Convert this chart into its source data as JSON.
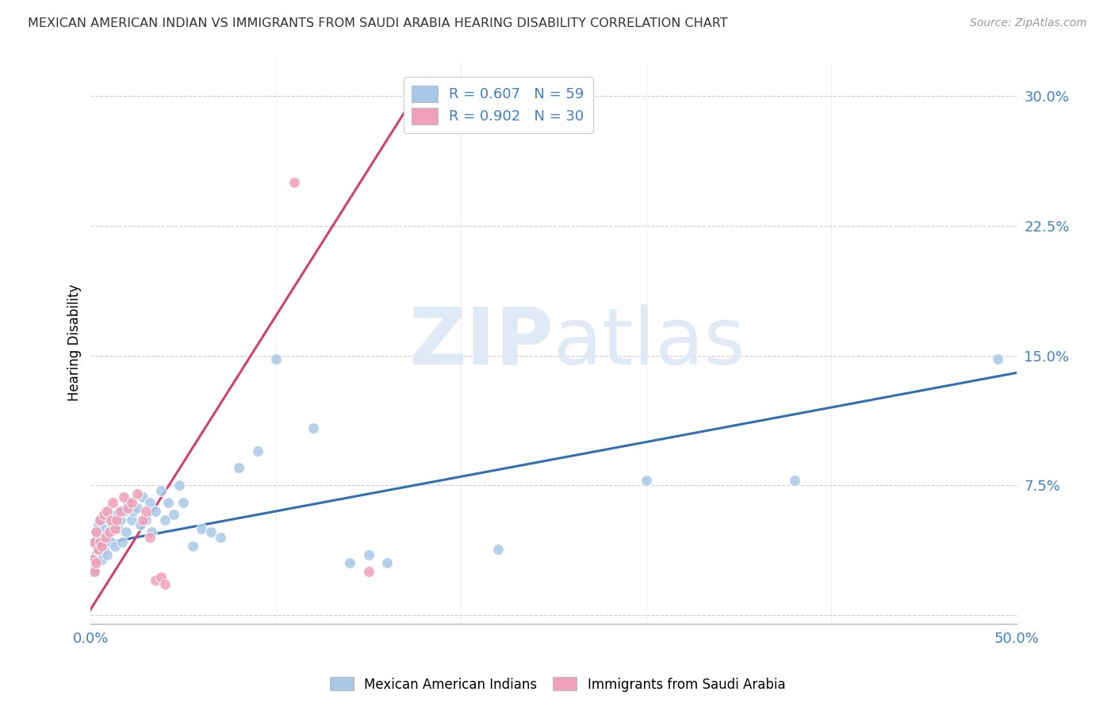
{
  "title": "MEXICAN AMERICAN INDIAN VS IMMIGRANTS FROM SAUDI ARABIA HEARING DISABILITY CORRELATION CHART",
  "source": "Source: ZipAtlas.com",
  "ylabel": "Hearing Disability",
  "xlim": [
    0.0,
    0.5
  ],
  "ylim": [
    -0.005,
    0.32
  ],
  "xticks": [
    0.0,
    0.1,
    0.2,
    0.3,
    0.4,
    0.5
  ],
  "yticks": [
    0.0,
    0.075,
    0.15,
    0.225,
    0.3
  ],
  "ytick_labels": [
    "",
    "7.5%",
    "15.0%",
    "22.5%",
    "30.0%"
  ],
  "xtick_labels": [
    "0.0%",
    "",
    "",
    "",
    "",
    "50.0%"
  ],
  "color_blue": "#a8c8e8",
  "color_pink": "#f0a0b8",
  "color_blue_fill": "#a8c8e8",
  "color_pink_fill": "#f0a0b8",
  "color_blue_line": "#3070b0",
  "color_pink_line": "#d04070",
  "color_blue_text": "#4080c0",
  "watermark_color": "#dce8f5",
  "blue_scatter_x": [
    0.001,
    0.002,
    0.002,
    0.003,
    0.003,
    0.004,
    0.004,
    0.005,
    0.005,
    0.006,
    0.006,
    0.007,
    0.007,
    0.008,
    0.008,
    0.009,
    0.009,
    0.01,
    0.01,
    0.011,
    0.012,
    0.013,
    0.014,
    0.015,
    0.016,
    0.017,
    0.018,
    0.019,
    0.02,
    0.022,
    0.023,
    0.025,
    0.027,
    0.028,
    0.03,
    0.032,
    0.033,
    0.035,
    0.038,
    0.04,
    0.042,
    0.045,
    0.048,
    0.05,
    0.055,
    0.06,
    0.065,
    0.07,
    0.08,
    0.09,
    0.1,
    0.12,
    0.14,
    0.15,
    0.16,
    0.22,
    0.3,
    0.38,
    0.49
  ],
  "blue_scatter_y": [
    0.03,
    0.025,
    0.042,
    0.035,
    0.048,
    0.038,
    0.052,
    0.04,
    0.055,
    0.032,
    0.045,
    0.058,
    0.038,
    0.05,
    0.06,
    0.035,
    0.045,
    0.055,
    0.048,
    0.042,
    0.052,
    0.04,
    0.058,
    0.05,
    0.055,
    0.042,
    0.06,
    0.048,
    0.065,
    0.055,
    0.06,
    0.062,
    0.052,
    0.068,
    0.055,
    0.065,
    0.048,
    0.06,
    0.072,
    0.055,
    0.065,
    0.058,
    0.075,
    0.065,
    0.04,
    0.05,
    0.048,
    0.045,
    0.085,
    0.095,
    0.148,
    0.108,
    0.03,
    0.035,
    0.03,
    0.038,
    0.078,
    0.078,
    0.148
  ],
  "pink_scatter_x": [
    0.001,
    0.002,
    0.002,
    0.003,
    0.003,
    0.004,
    0.005,
    0.005,
    0.006,
    0.007,
    0.008,
    0.009,
    0.01,
    0.011,
    0.012,
    0.013,
    0.014,
    0.016,
    0.018,
    0.02,
    0.022,
    0.025,
    0.028,
    0.03,
    0.032,
    0.035,
    0.038,
    0.04,
    0.11,
    0.15
  ],
  "pink_scatter_y": [
    0.032,
    0.025,
    0.042,
    0.03,
    0.048,
    0.038,
    0.042,
    0.055,
    0.04,
    0.058,
    0.045,
    0.06,
    0.048,
    0.055,
    0.065,
    0.05,
    0.055,
    0.06,
    0.068,
    0.062,
    0.065,
    0.07,
    0.055,
    0.06,
    0.045,
    0.02,
    0.022,
    0.018,
    0.25,
    0.025
  ],
  "blue_line_x": [
    0.0,
    0.5
  ],
  "blue_line_y": [
    0.04,
    0.14
  ],
  "pink_line_x": [
    -0.002,
    0.175
  ],
  "pink_line_y": [
    0.0,
    0.3
  ]
}
